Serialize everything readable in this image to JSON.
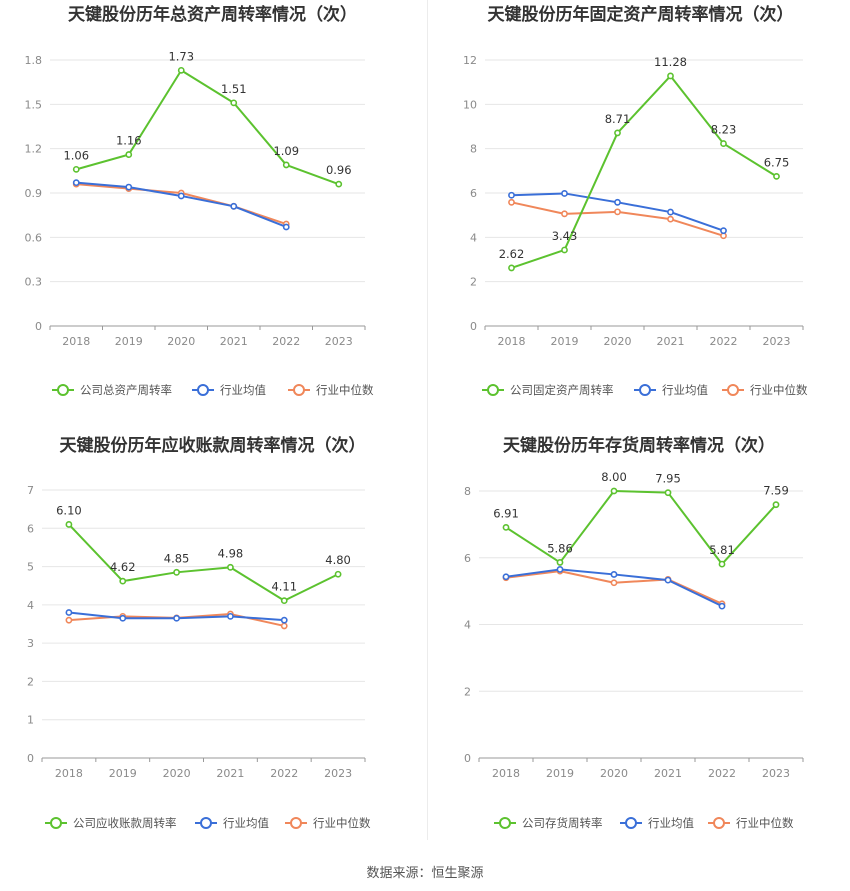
{
  "source_text": "数据来源：恒生聚源",
  "colors": {
    "company": "#5cc22f",
    "industry_avg": "#3a6fd8",
    "industry_median": "#f0875a"
  },
  "chart_data": [
    {
      "type": "line",
      "title": "天键股份历年总资产周转率情况（次）",
      "categories": [
        "2018",
        "2019",
        "2020",
        "2021",
        "2022",
        "2023"
      ],
      "yticks": [
        "0",
        "0.3",
        "0.6",
        "0.9",
        "1.2",
        "1.5",
        "1.8"
      ],
      "ylim": [
        0,
        1.8
      ],
      "series": [
        {
          "name": "公司总资产周转率",
          "values": [
            1.06,
            1.16,
            1.73,
            1.51,
            1.09,
            0.96
          ],
          "labels": [
            "1.06",
            "1.16",
            "1.73",
            "1.51",
            "1.09",
            "0.96"
          ]
        },
        {
          "name": "行业均值",
          "values": [
            0.97,
            0.94,
            0.88,
            0.81,
            0.67,
            null
          ]
        },
        {
          "name": "行业中位数",
          "values": [
            0.96,
            0.93,
            0.9,
            0.81,
            0.69,
            null
          ]
        }
      ]
    },
    {
      "type": "line",
      "title": "天键股份历年固定资产周转率情况（次）",
      "categories": [
        "2018",
        "2019",
        "2020",
        "2021",
        "2022",
        "2023"
      ],
      "yticks": [
        "0",
        "2",
        "4",
        "6",
        "8",
        "10",
        "12"
      ],
      "ylim": [
        0,
        12
      ],
      "series": [
        {
          "name": "公司固定资产周转率",
          "values": [
            2.62,
            3.43,
            8.71,
            11.28,
            8.23,
            6.75
          ],
          "labels": [
            "2.62",
            "3.43",
            "8.71",
            "11.28",
            "8.23",
            "6.75"
          ]
        },
        {
          "name": "行业均值",
          "values": [
            5.9,
            5.98,
            5.58,
            5.14,
            4.3,
            null
          ]
        },
        {
          "name": "行业中位数",
          "values": [
            5.58,
            5.06,
            5.15,
            4.82,
            4.07,
            null
          ]
        }
      ]
    },
    {
      "type": "line",
      "title": "天键股份历年应收账款周转率情况（次）",
      "categories": [
        "2018",
        "2019",
        "2020",
        "2021",
        "2022",
        "2023"
      ],
      "yticks": [
        "0",
        "1",
        "2",
        "3",
        "4",
        "5",
        "6",
        "7"
      ],
      "ylim": [
        0,
        7
      ],
      "series": [
        {
          "name": "公司应收账款周转率",
          "values": [
            6.1,
            4.62,
            4.85,
            4.98,
            4.11,
            4.8
          ],
          "labels": [
            "6.10",
            "4.62",
            "4.85",
            "4.98",
            "4.11",
            "4.80"
          ]
        },
        {
          "name": "行业均值",
          "values": [
            3.8,
            3.65,
            3.65,
            3.7,
            3.6,
            null
          ]
        },
        {
          "name": "行业中位数",
          "values": [
            3.6,
            3.7,
            3.66,
            3.76,
            3.45,
            null
          ]
        }
      ]
    },
    {
      "type": "line",
      "title": "天键股份历年存货周转率情况（次）",
      "categories": [
        "2018",
        "2019",
        "2020",
        "2021",
        "2022",
        "2023"
      ],
      "yticks": [
        "0",
        "2",
        "4",
        "6",
        "8"
      ],
      "ylim": [
        0,
        8
      ],
      "series": [
        {
          "name": "公司存货周转率",
          "values": [
            6.91,
            5.86,
            8.0,
            7.95,
            5.81,
            7.59
          ],
          "labels": [
            "6.91",
            "5.86",
            "8.00",
            "7.95",
            "5.81",
            "7.59"
          ]
        },
        {
          "name": "行业均值",
          "values": [
            5.43,
            5.65,
            5.5,
            5.33,
            4.55,
            null
          ]
        },
        {
          "name": "行业中位数",
          "values": [
            5.4,
            5.6,
            5.25,
            5.35,
            4.62,
            null
          ]
        }
      ]
    }
  ]
}
